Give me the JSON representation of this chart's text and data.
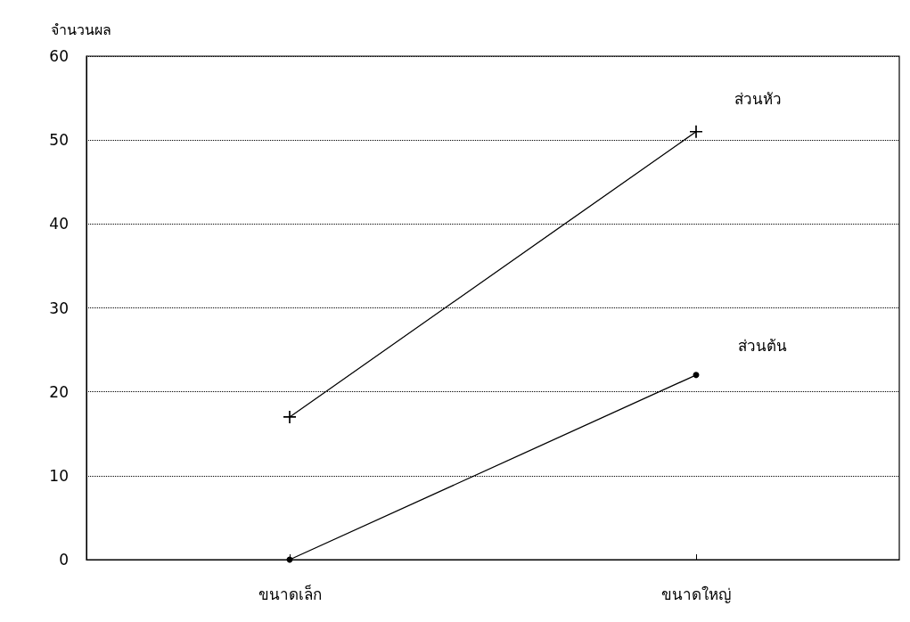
{
  "chart_data": {
    "type": "line",
    "ylabel": "จำนวนผล",
    "categories": [
      "ขนาดเล็ก",
      "ขนาดใหญ่"
    ],
    "series": [
      {
        "name": "ส่วนหัว",
        "color": "#000000",
        "marker": "cross",
        "values": [
          17,
          51
        ]
      },
      {
        "name": "ส่วนต้น",
        "color": "#000000",
        "marker": "circle",
        "values": [
          0,
          22
        ]
      }
    ],
    "ylim": [
      0,
      60
    ],
    "yticks": [
      0,
      10,
      20,
      30,
      40,
      50,
      60
    ],
    "grid": "y",
    "legend": false,
    "line_style": "solid"
  }
}
